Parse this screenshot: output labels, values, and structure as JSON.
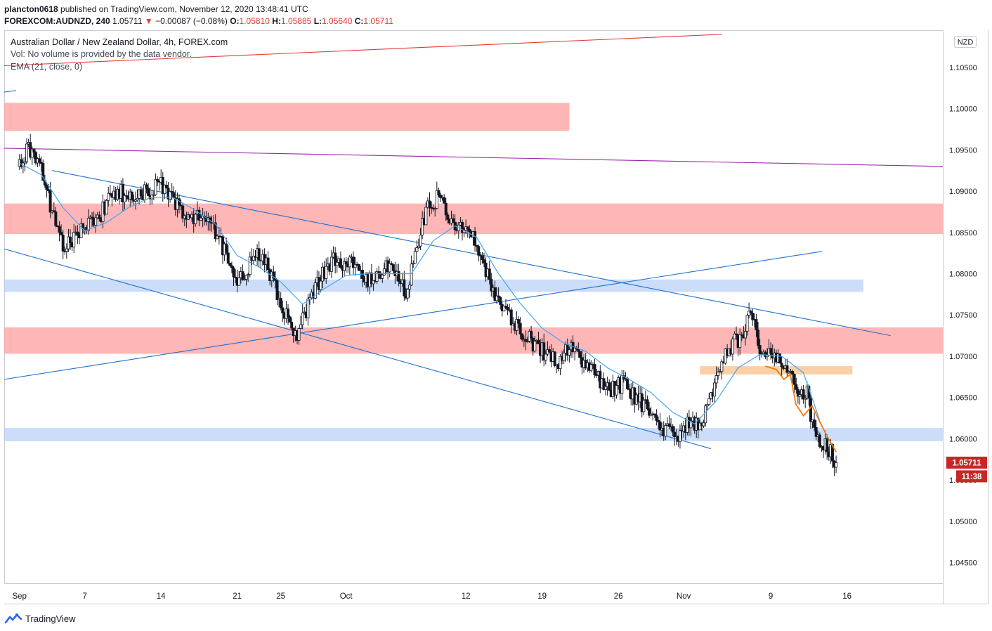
{
  "header": {
    "published_by": "plancton0618",
    "published_on": "published on TradingView.com, November 12, 2020 13:48:41 UTC",
    "symbol": "FOREXCOM:AUDNZD, 240",
    "last": "1.05711",
    "change_arrow": "▼",
    "change": "−0.00087 (−0.08%)",
    "o_label": "O:",
    "o_value": "1.05810",
    "h_label": "H:",
    "h_value": "1.05885",
    "l_label": "L:",
    "l_value": "1.05640",
    "c_label": "C:",
    "c_value": "1.05711"
  },
  "legend": {
    "title": "Australian Dollar / New Zealand Dollar, 4h, FOREX.com",
    "volume": "Vol: No volume is provided by the data vendor.",
    "ema": "EMA (21, close, 0)"
  },
  "footer": {
    "brand": "TradingView"
  },
  "colors": {
    "up_candle": "#131722",
    "down_candle": "#131722",
    "ema": "#42a5f5",
    "trendline": "#1e6fd0",
    "resistance_zone": "#ff9e9e",
    "support_zone": "#a9c6f5",
    "orange_zone": "#f7c08a",
    "orange_line": "#f57c00",
    "purple_line": "#9c27b0",
    "red_line": "#e53935",
    "price_badge": "#c62828"
  },
  "chart_data": {
    "type": "candlestick",
    "currency_label": "NZD",
    "y_ticks": [
      "1.10500",
      "1.10000",
      "1.09500",
      "1.09000",
      "1.08500",
      "1.08000",
      "1.07500",
      "1.07000",
      "1.06500",
      "1.06000",
      "1.05500",
      "1.05000",
      "1.04500"
    ],
    "ylim": [
      1.0425,
      1.1095
    ],
    "x_labels": [
      {
        "t": 0,
        "label": "Sep"
      },
      {
        "t": 6,
        "label": "7"
      },
      {
        "t": 13,
        "label": "14"
      },
      {
        "t": 20,
        "label": "21"
      },
      {
        "t": 24,
        "label": "25"
      },
      {
        "t": 30,
        "label": "Oct"
      },
      {
        "t": 41,
        "label": "12"
      },
      {
        "t": 48,
        "label": "19"
      },
      {
        "t": 55,
        "label": "26"
      },
      {
        "t": 61,
        "label": "Nov"
      },
      {
        "t": 69,
        "label": "9"
      },
      {
        "t": 76,
        "label": "16"
      }
    ],
    "x_range": [
      -1.4,
      84.8
    ],
    "last_price_badge": "1.05711",
    "countdown_badge": "11:38",
    "price_path": [
      [
        0,
        1.093
      ],
      [
        0.8,
        1.0952
      ],
      [
        2,
        1.093
      ],
      [
        3,
        1.087
      ],
      [
        4,
        1.0835
      ],
      [
        5,
        1.084
      ],
      [
        6,
        1.0855
      ],
      [
        7,
        1.0862
      ],
      [
        8,
        1.0885
      ],
      [
        9,
        1.09
      ],
      [
        10,
        1.0895
      ],
      [
        11,
        1.0898
      ],
      [
        12,
        1.09
      ],
      [
        13,
        1.0908
      ],
      [
        14,
        1.0895
      ],
      [
        15,
        1.0872
      ],
      [
        16,
        1.087
      ],
      [
        17,
        1.0872
      ],
      [
        18,
        1.0852
      ],
      [
        19,
        1.082
      ],
      [
        20,
        1.0785
      ],
      [
        21,
        1.0808
      ],
      [
        22,
        1.0825
      ],
      [
        23,
        1.08
      ],
      [
        24,
        1.0768
      ],
      [
        25.2,
        1.072
      ],
      [
        26,
        1.0745
      ],
      [
        27,
        1.0775
      ],
      [
        28,
        1.0805
      ],
      [
        29,
        1.082
      ],
      [
        30,
        1.0808
      ],
      [
        31,
        1.0815
      ],
      [
        32,
        1.079
      ],
      [
        33,
        1.0802
      ],
      [
        34,
        1.081
      ],
      [
        35,
        1.079
      ],
      [
        35.6,
        1.0775
      ],
      [
        36.5,
        1.0835
      ],
      [
        37.5,
        1.088
      ],
      [
        38.5,
        1.0892
      ],
      [
        39.5,
        1.0868
      ],
      [
        40.5,
        1.0858
      ],
      [
        41.5,
        1.085
      ],
      [
        42.5,
        1.082
      ],
      [
        43.5,
        1.078
      ],
      [
        44.5,
        1.0755
      ],
      [
        45.5,
        1.074
      ],
      [
        46.5,
        1.0725
      ],
      [
        47.5,
        1.0712
      ],
      [
        48.5,
        1.07
      ],
      [
        49.5,
        1.0695
      ],
      [
        50.5,
        1.0715
      ],
      [
        51.5,
        1.07
      ],
      [
        52.5,
        1.0682
      ],
      [
        53.5,
        1.0668
      ],
      [
        54.5,
        1.066
      ],
      [
        55.5,
        1.0668
      ],
      [
        56.5,
        1.0648
      ],
      [
        57.5,
        1.064
      ],
      [
        58.5,
        1.0618
      ],
      [
        59.5,
        1.061
      ],
      [
        60.5,
        1.0605
      ],
      [
        61.5,
        1.0618
      ],
      [
        62.5,
        1.0615
      ],
      [
        63.5,
        1.065
      ],
      [
        64.5,
        1.069
      ],
      [
        65.5,
        1.0715
      ],
      [
        66.3,
        1.0722
      ],
      [
        67.2,
        1.075
      ],
      [
        68,
        1.0712
      ],
      [
        69,
        1.0708
      ],
      [
        70,
        1.0698
      ],
      [
        70.8,
        1.0672
      ],
      [
        71.5,
        1.066
      ],
      [
        72.3,
        1.0655
      ],
      [
        73,
        1.0608
      ],
      [
        73.8,
        1.0595
      ],
      [
        74.6,
        1.0582
      ],
      [
        75,
        1.0571
      ]
    ],
    "ema_path": [
      [
        0,
        1.0934
      ],
      [
        2,
        1.092
      ],
      [
        4,
        1.088
      ],
      [
        6,
        1.0852
      ],
      [
        8,
        1.0862
      ],
      [
        10,
        1.088
      ],
      [
        12,
        1.0892
      ],
      [
        14,
        1.0893
      ],
      [
        16,
        1.0878
      ],
      [
        18,
        1.086
      ],
      [
        20,
        1.0822
      ],
      [
        22,
        1.0808
      ],
      [
        24,
        1.079
      ],
      [
        26,
        1.0763
      ],
      [
        28,
        1.0782
      ],
      [
        30,
        1.0798
      ],
      [
        32,
        1.08
      ],
      [
        34,
        1.08
      ],
      [
        36,
        1.08
      ],
      [
        38,
        1.084
      ],
      [
        40,
        1.0858
      ],
      [
        42,
        1.0844
      ],
      [
        44,
        1.08
      ],
      [
        46,
        1.0764
      ],
      [
        48,
        1.0734
      ],
      [
        50,
        1.0716
      ],
      [
        52,
        1.0706
      ],
      [
        54,
        1.0686
      ],
      [
        56,
        1.0672
      ],
      [
        58,
        1.0656
      ],
      [
        60,
        1.0632
      ],
      [
        62,
        1.0618
      ],
      [
        64,
        1.0646
      ],
      [
        66,
        1.0686
      ],
      [
        68,
        1.0702
      ],
      [
        70,
        1.07
      ],
      [
        72,
        1.068
      ],
      [
        73.5,
        1.0622
      ]
    ],
    "annotations": {
      "resistance_zones": [
        {
          "t1": -1.4,
          "t2": 50.5,
          "y1": 1.0973,
          "y2": 1.1007
        },
        {
          "t1": -1.4,
          "t2": 84.8,
          "y1": 1.0848,
          "y2": 1.0885
        },
        {
          "t1": -1.4,
          "t2": 84.8,
          "y1": 1.0703,
          "y2": 1.0735
        }
      ],
      "support_zones": [
        {
          "t1": -1.4,
          "t2": 77.5,
          "y1": 1.0778,
          "y2": 1.0793
        },
        {
          "t1": -1.4,
          "t2": 84.8,
          "y1": 1.0597,
          "y2": 1.0613
        }
      ],
      "orange_zones": [
        {
          "t1": 62.5,
          "t2": 76.5,
          "y1": 1.0678,
          "y2": 1.0688
        }
      ],
      "trendlines": [
        {
          "t1": 3.0,
          "y1": 1.0925,
          "t2": 80.0,
          "y2": 1.0725,
          "color": "#1e6fd0"
        },
        {
          "t1": -1.4,
          "y1": 1.083,
          "t2": 63.5,
          "y2": 1.0588,
          "color": "#1e6fd0"
        },
        {
          "t1": -1.4,
          "y1": 1.0672,
          "t2": 73.7,
          "y2": 1.0827,
          "color": "#1e6fd0"
        },
        {
          "t1": -1.4,
          "y1": 1.102,
          "t2": -0.3,
          "y2": 1.1022,
          "color": "#1e6fd0"
        },
        {
          "t1": -1.4,
          "y1": 1.0952,
          "t2": 84.8,
          "y2": 1.093,
          "color": "#9c27b0"
        },
        {
          "t1": -1.4,
          "y1": 1.1052,
          "t2": 64.5,
          "y2": 1.109,
          "color": "#e53935"
        }
      ],
      "orange_path": [
        [
          68.5,
          1.0688
        ],
        [
          69.5,
          1.0684
        ],
        [
          70.2,
          1.0672
        ],
        [
          70.8,
          1.0678
        ],
        [
          71.3,
          1.0642
        ],
        [
          72.0,
          1.0628
        ],
        [
          72.8,
          1.064
        ],
        [
          73.6,
          1.0618
        ],
        [
          74.3,
          1.06
        ],
        [
          75.0,
          1.0584
        ]
      ]
    }
  }
}
